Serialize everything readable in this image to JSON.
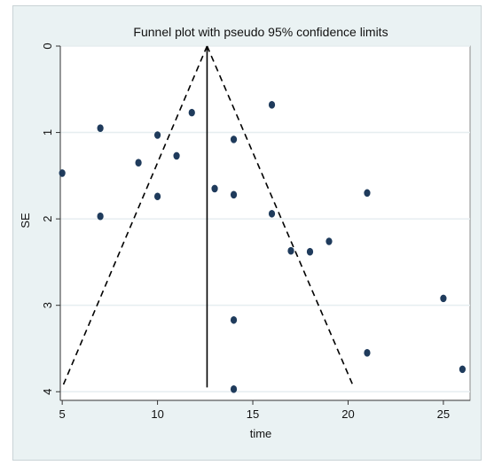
{
  "chart_data": {
    "type": "scatter",
    "title": "Funnel plot with pseudo 95% confidence limits",
    "xlabel": "time",
    "ylabel": "SE",
    "xlim": [
      4.9,
      26.4
    ],
    "ylim": [
      0,
      4.1
    ],
    "y_inverted": true,
    "xticks": [
      5,
      10,
      15,
      20,
      25
    ],
    "yticks": [
      0,
      1,
      2,
      3,
      4
    ],
    "grid": true,
    "pooled_estimate": 12.6,
    "confidence_limits": {
      "apex": [
        12.6,
        0
      ],
      "lower_end": [
        5.0,
        3.95
      ],
      "upper_end": [
        20.3,
        3.95
      ]
    },
    "points": [
      {
        "x": 5,
        "y": 1.47
      },
      {
        "x": 7,
        "y": 0.95
      },
      {
        "x": 7,
        "y": 1.97
      },
      {
        "x": 9,
        "y": 1.35
      },
      {
        "x": 10,
        "y": 1.03
      },
      {
        "x": 10,
        "y": 1.74
      },
      {
        "x": 11,
        "y": 1.27
      },
      {
        "x": 11.8,
        "y": 0.77
      },
      {
        "x": 13,
        "y": 1.65
      },
      {
        "x": 14,
        "y": 1.08
      },
      {
        "x": 14,
        "y": 1.72
      },
      {
        "x": 14,
        "y": 3.17
      },
      {
        "x": 14,
        "y": 3.97
      },
      {
        "x": 16,
        "y": 0.68
      },
      {
        "x": 16,
        "y": 1.94
      },
      {
        "x": 17,
        "y": 2.37
      },
      {
        "x": 18,
        "y": 2.38
      },
      {
        "x": 19,
        "y": 2.26
      },
      {
        "x": 21,
        "y": 1.7
      },
      {
        "x": 21,
        "y": 3.55
      },
      {
        "x": 25,
        "y": 2.92
      },
      {
        "x": 26,
        "y": 3.74
      }
    ],
    "colors": {
      "point": "#1f3b5c",
      "plot_background": "#ffffff",
      "outer_background": "#eaf2f3",
      "grid": "#e6eef0",
      "line": "#000000"
    }
  }
}
